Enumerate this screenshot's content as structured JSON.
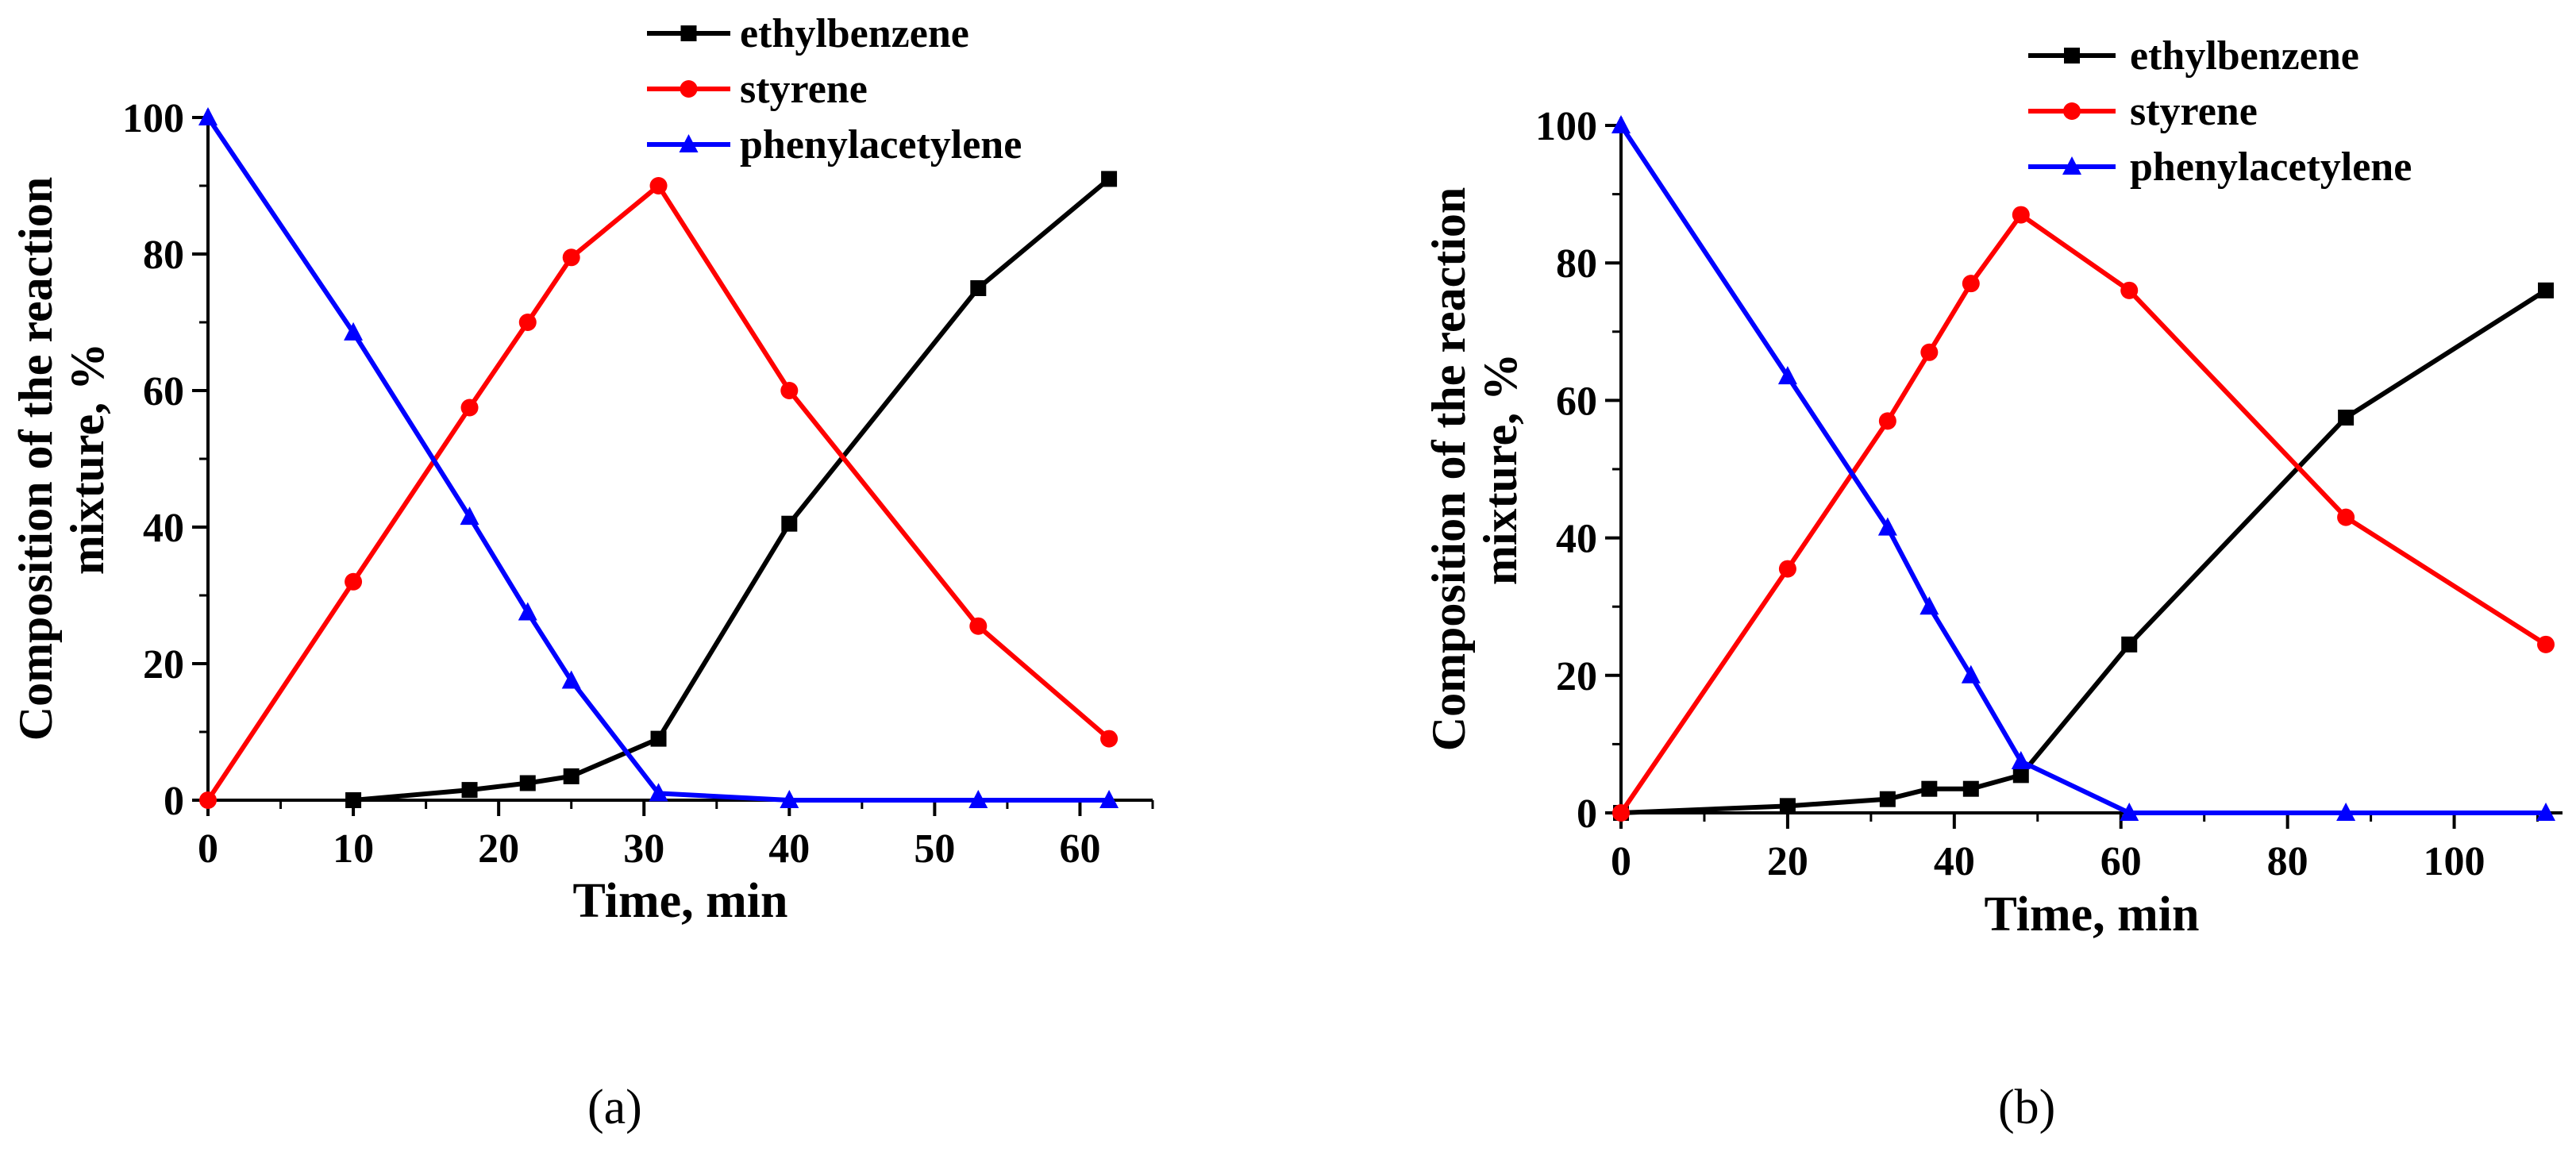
{
  "figure": {
    "panel_labels": [
      "(a)",
      "(b)"
    ]
  },
  "colors": {
    "ethylbenzene": "#000000",
    "styrene": "#ff0000",
    "phenylacetylene": "#0000ff"
  },
  "chart_data": [
    {
      "type": "line",
      "panel": "(a)",
      "title": "",
      "xlabel": "Time, min",
      "ylabel_lines": [
        "Composition of the reaction",
        "mixture, %"
      ],
      "xlim": [
        0,
        65
      ],
      "ylim": [
        0,
        100
      ],
      "xticks": [
        0,
        10,
        20,
        30,
        40,
        50,
        60
      ],
      "yticks": [
        0,
        20,
        40,
        60,
        80,
        100
      ],
      "x_minor_step": 5,
      "y_minor_step": 10,
      "legend": "top-center",
      "series": [
        {
          "name": "ethylbenzene",
          "marker": "square",
          "x": [
            10,
            18,
            22,
            25,
            31,
            40,
            53,
            62
          ],
          "y": [
            0,
            1.5,
            2.5,
            3.5,
            9,
            40.5,
            75,
            91
          ]
        },
        {
          "name": "styrene",
          "marker": "circle",
          "x": [
            0,
            10,
            18,
            22,
            25,
            31,
            40,
            53,
            62
          ],
          "y": [
            0,
            32,
            57.5,
            70,
            79.5,
            90,
            60,
            25.5,
            9
          ]
        },
        {
          "name": "phenylacetylene",
          "marker": "triangle",
          "x": [
            0,
            10,
            18,
            22,
            25,
            31,
            40,
            53,
            62
          ],
          "y": [
            100,
            68.5,
            41.5,
            27.5,
            17.5,
            1,
            0,
            0,
            0
          ]
        }
      ]
    },
    {
      "type": "line",
      "panel": "(b)",
      "title": "",
      "xlabel": "Time, min",
      "ylabel_lines": [
        "Composition of the reaction",
        "mixture, %"
      ],
      "xlim": [
        0,
        113
      ],
      "ylim": [
        0,
        100
      ],
      "xticks": [
        0,
        20,
        40,
        60,
        80,
        100
      ],
      "yticks": [
        0,
        20,
        40,
        60,
        80,
        100
      ],
      "x_minor_step": 10,
      "y_minor_step": 10,
      "legend": "top-center",
      "series": [
        {
          "name": "ethylbenzene",
          "marker": "square",
          "x": [
            0,
            20,
            32,
            37,
            42,
            48,
            61,
            87,
            111
          ],
          "y": [
            0,
            1,
            2,
            3.5,
            3.5,
            5.5,
            24.5,
            57.5,
            76
          ]
        },
        {
          "name": "styrene",
          "marker": "circle",
          "x": [
            0,
            20,
            32,
            37,
            42,
            48,
            61,
            87,
            111
          ],
          "y": [
            0,
            35.5,
            57,
            67,
            77,
            87,
            76,
            43,
            24.5
          ]
        },
        {
          "name": "phenylacetylene",
          "marker": "triangle",
          "x": [
            0,
            20,
            32,
            37,
            42,
            48,
            61,
            87,
            111
          ],
          "y": [
            100,
            63.5,
            41.5,
            30,
            20,
            7.5,
            0,
            0,
            0
          ]
        }
      ]
    }
  ]
}
